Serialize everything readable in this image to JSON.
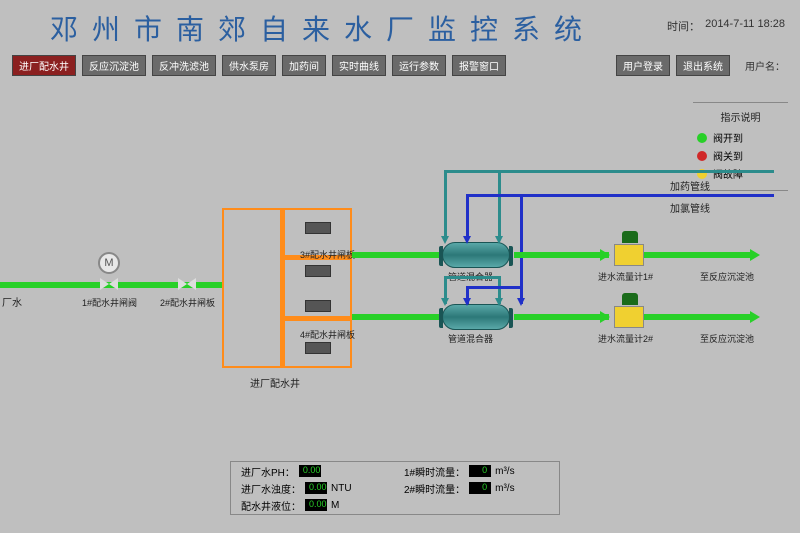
{
  "header": {
    "title": "邓州市南郊自来水厂监控系统",
    "time_label": "时间：",
    "time_value": "2014-7-11 18:28"
  },
  "toolbar": {
    "main_buttons": [
      {
        "label": "进厂配水井",
        "active": true
      },
      {
        "label": "反应沉淀池",
        "active": false
      },
      {
        "label": "反冲洗滤池",
        "active": false
      },
      {
        "label": "供水泵房",
        "active": false
      },
      {
        "label": "加药间",
        "active": false
      },
      {
        "label": "实时曲线",
        "active": false
      },
      {
        "label": "运行参数",
        "active": false
      },
      {
        "label": "报警窗口",
        "active": false
      }
    ],
    "right_buttons": [
      {
        "label": "用户登录"
      },
      {
        "label": "退出系统"
      }
    ],
    "user_label": "用户名："
  },
  "legend": {
    "title": "指示说明",
    "items": [
      {
        "color": "#28d028",
        "label": "阀开到"
      },
      {
        "color": "#d02828",
        "label": "阀关到"
      },
      {
        "color": "#f0d030",
        "label": "阀故障"
      }
    ]
  },
  "diagram": {
    "source_water": "厂水",
    "valve1": "1#配水井闸阀",
    "valve2": "2#配水井闸板",
    "gate3": "3#配水井闸板",
    "gate4": "4#配水井闸板",
    "well_title": "进厂配水井",
    "mixer_label": "管道混合器",
    "dosing_line": "加药管线",
    "chlorine_line": "加氯管线",
    "flowmeter1": "进水流量计1#",
    "flowmeter2": "进水流量计2#",
    "to_sedimentation": "至反应沉淀池",
    "motor_symbol": "M"
  },
  "status": {
    "items": [
      {
        "label": "进厂水PH：",
        "value": "0.00",
        "unit": ""
      },
      {
        "label": "1#瞬时流量：",
        "value": "0",
        "unit": "m³/s"
      },
      {
        "label": "进厂水浊度：",
        "value": "0.00",
        "unit": "NTU"
      },
      {
        "label": "2#瞬时流量：",
        "value": "0",
        "unit": "m³/s"
      },
      {
        "label": "配水井液位：",
        "value": "0.00",
        "unit": "M"
      },
      {
        "label": "",
        "value": "",
        "unit": ""
      }
    ]
  },
  "colors": {
    "bg": "#bfbfbf",
    "title": "#2b5fa0",
    "pipe_green": "#28d028",
    "pipe_teal": "#2c8c8c",
    "pipe_blue": "#2030c8",
    "orange": "#ff8c1a"
  }
}
